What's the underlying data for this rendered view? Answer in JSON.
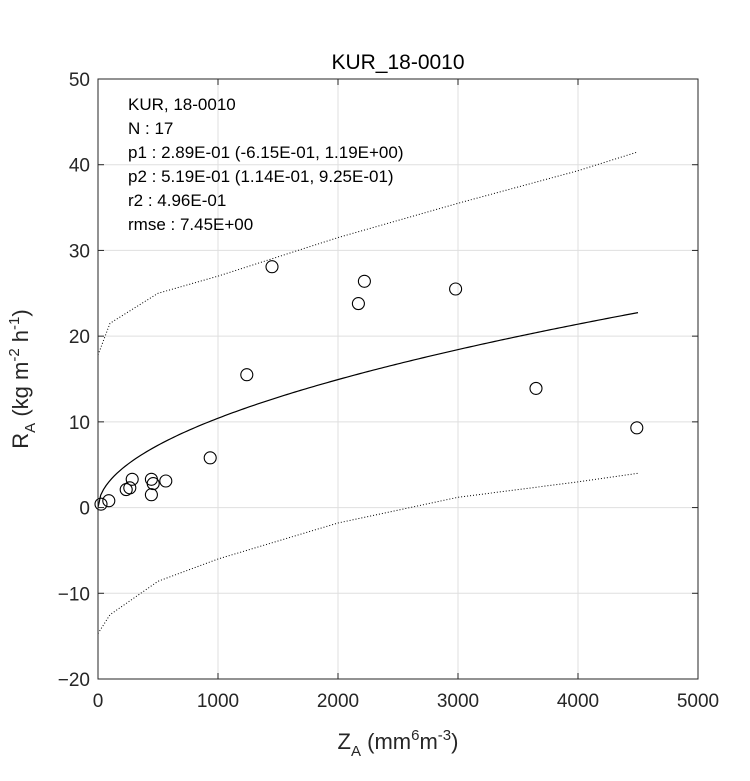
{
  "chart_data": {
    "type": "scatter",
    "title": "KUR_18-0010",
    "xlabel": {
      "main": "Z",
      "sub": "A",
      "unit_open": " (mm",
      "sup1": "6",
      "unit_mid": "m",
      "sup2": "-3",
      "unit_close": ")"
    },
    "ylabel": {
      "main": "R",
      "sub": "A",
      "unit_open": " (kg m",
      "sup1": "-2",
      "unit_mid": " h",
      "sup2": "-1",
      "unit_close": ")"
    },
    "xlim": [
      0,
      5000
    ],
    "ylim": [
      -20,
      50
    ],
    "xticks": [
      0,
      1000,
      2000,
      3000,
      4000,
      5000
    ],
    "yticks": [
      -20,
      -10,
      0,
      10,
      20,
      30,
      40,
      50
    ],
    "grid": true,
    "stats": [
      "KUR, 18-0010",
      "N    : 17",
      "p1   : 2.89E-01 (-6.15E-01, 1.19E+00)",
      "p2   : 5.19E-01 (1.14E-01, 9.25E-01)",
      "r2   : 4.96E-01",
      "rmse : 7.45E+00"
    ],
    "fit": {
      "p1": 0.289,
      "p2": 0.519,
      "x_range": [
        0,
        4500
      ]
    },
    "ci_upper": {
      "x": [
        0,
        100,
        500,
        1000,
        2000,
        3000,
        4000,
        4500
      ],
      "y": [
        17.8,
        21.5,
        25.0,
        27.0,
        31.5,
        35.5,
        39.3,
        41.5
      ]
    },
    "ci_lower": {
      "x": [
        0,
        100,
        500,
        1000,
        2000,
        3000,
        4000,
        4500
      ],
      "y": [
        -14.7,
        -12.5,
        -8.6,
        -6.0,
        -1.8,
        1.2,
        3.0,
        4.0
      ]
    },
    "points": {
      "x": [
        25,
        90,
        235,
        265,
        285,
        445,
        445,
        460,
        565,
        935,
        1240,
        1450,
        2170,
        2220,
        2980,
        3650,
        4490
      ],
      "y": [
        0.4,
        0.8,
        2.1,
        2.3,
        3.3,
        3.3,
        1.5,
        2.8,
        3.1,
        5.8,
        15.5,
        28.1,
        23.8,
        26.4,
        25.5,
        13.9,
        9.3
      ]
    }
  }
}
